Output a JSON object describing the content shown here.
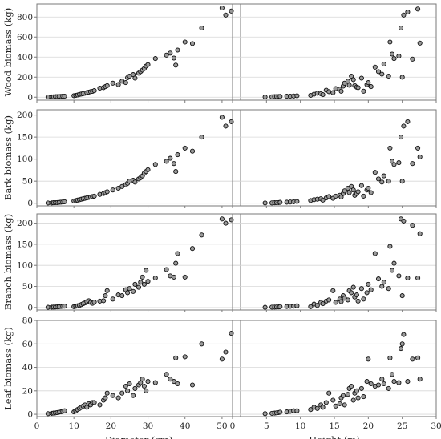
{
  "chart_data": {
    "type": "scatter",
    "grid": true,
    "layout": "4x2 scatter matrix",
    "marker": {
      "shape": "circle",
      "fill": "#9a9a9a",
      "stroke": "#111111"
    },
    "colors": {
      "frame": "#7a7a7a",
      "grid": "#d8d8d8",
      "text": "#222222"
    },
    "columns": [
      {
        "xlabel": "Diameter (cm)",
        "xlim": [
          0,
          55
        ],
        "xticks": [
          0,
          10,
          20,
          30,
          40,
          50
        ],
        "x": [
          3,
          4,
          4.5,
          5,
          5.5,
          6,
          6.5,
          7,
          7.5,
          10,
          10.5,
          11,
          11.5,
          12,
          12.5,
          13,
          13.5,
          14,
          14.5,
          15,
          15.5,
          17,
          18,
          18.5,
          19,
          20.5,
          22,
          23,
          24,
          24.5,
          25,
          26,
          26.5,
          27.5,
          28,
          28.5,
          29,
          29.5,
          30,
          32,
          35,
          36,
          37,
          37.5,
          38,
          40,
          42,
          44.5,
          50,
          51,
          52.5
        ]
      },
      {
        "xlabel": "Height (m)",
        "xlim": [
          0,
          30
        ],
        "xticks": [
          0,
          5,
          10,
          15,
          20,
          25,
          30
        ],
        "x": [
          4.8,
          5.8,
          6.2,
          6.5,
          6.8,
          7,
          8,
          8.5,
          9,
          9.5,
          11.5,
          12,
          12.5,
          13,
          13.3,
          13.8,
          14.2,
          14.8,
          15.2,
          15.8,
          16,
          16.3,
          16.5,
          17,
          17.2,
          17.5,
          17.8,
          18,
          18.3,
          18.5,
          19,
          19.3,
          19.8,
          20,
          20.4,
          21,
          21.5,
          22,
          22.3,
          23,
          23.2,
          23.5,
          23.8,
          24.5,
          24.8,
          25,
          25.2,
          25.8,
          26.5,
          27.3,
          27.6
        ]
      }
    ],
    "rows": [
      {
        "ylabel": "Wood biomass (kg)",
        "ylim": [
          -30,
          930
        ],
        "yticks": [
          0,
          200,
          400,
          600,
          800
        ],
        "by_diameter": [
          2,
          3,
          4,
          5,
          6,
          7,
          8,
          9,
          10,
          15,
          18,
          22,
          28,
          32,
          36,
          40,
          45,
          50,
          55,
          58,
          65,
          90,
          95,
          105,
          115,
          140,
          125,
          160,
          145,
          195,
          210,
          225,
          190,
          240,
          255,
          270,
          285,
          310,
          325,
          385,
          420,
          440,
          390,
          320,
          470,
          550,
          535,
          690,
          890,
          820,
          860
        ],
        "by_height": [
          2,
          4,
          6,
          6,
          7,
          8,
          9,
          10,
          12,
          14,
          18,
          30,
          40,
          35,
          25,
          70,
          55,
          45,
          85,
          80,
          60,
          110,
          140,
          160,
          120,
          210,
          175,
          115,
          100,
          95,
          190,
          60,
          125,
          145,
          105,
          300,
          255,
          230,
          330,
          210,
          550,
          430,
          385,
          410,
          690,
          200,
          820,
          850,
          380,
          880,
          540
        ]
      },
      {
        "ylabel": "Bark biomass (kg)",
        "ylim": [
          -6,
          212
        ],
        "yticks": [
          0,
          50,
          100,
          150,
          200
        ],
        "by_diameter": [
          0.5,
          0.8,
          1,
          1.2,
          1.5,
          2,
          2.3,
          2.8,
          3.2,
          5,
          6,
          7,
          8,
          9,
          10,
          11,
          12,
          13,
          14,
          15,
          16,
          20,
          22,
          24,
          26,
          30,
          34,
          38,
          42,
          45,
          50,
          52,
          48,
          55,
          58,
          62,
          68,
          72,
          76,
          88,
          95,
          102,
          90,
          72,
          110,
          125,
          118,
          150,
          195,
          175,
          185
        ],
        "by_height": [
          0.5,
          0.8,
          1,
          1.2,
          1.5,
          2,
          2.3,
          2.8,
          3.2,
          4,
          6,
          8,
          9,
          10,
          7,
          12,
          15,
          11,
          16,
          18,
          14,
          22,
          28,
          34,
          24,
          38,
          30,
          18,
          22,
          26,
          40,
          16,
          30,
          34,
          24,
          70,
          55,
          48,
          62,
          50,
          125,
          95,
          88,
          92,
          150,
          50,
          175,
          185,
          90,
          125,
          105
        ]
      },
      {
        "ylabel": "Branch biomass (kg)",
        "ylim": [
          -6,
          222
        ],
        "yticks": [
          0,
          50,
          100,
          150,
          200
        ],
        "by_diameter": [
          0.5,
          0.8,
          1,
          1.2,
          1.5,
          2,
          2.3,
          2.8,
          3.2,
          2,
          3,
          4,
          5,
          7,
          9,
          11,
          14,
          16,
          12,
          10,
          13,
          15,
          16,
          28,
          40,
          20,
          30,
          28,
          42,
          35,
          45,
          38,
          55,
          48,
          60,
          72,
          55,
          88,
          62,
          70,
          90,
          75,
          72,
          105,
          128,
          72,
          140,
          172,
          210,
          200,
          208
        ],
        "by_height": [
          0.5,
          0.8,
          1,
          1.2,
          1.5,
          2,
          2.3,
          2.8,
          3.2,
          4,
          2,
          8,
          5,
          12,
          9,
          15,
          18,
          40,
          12,
          20,
          14,
          28,
          22,
          18,
          40,
          35,
          48,
          25,
          30,
          15,
          45,
          20,
          35,
          55,
          42,
          128,
          68,
          50,
          60,
          45,
          145,
          88,
          105,
          75,
          210,
          28,
          205,
          70,
          195,
          70,
          175
        ]
      },
      {
        "ylabel": "Leaf biomass (kg)",
        "ylim": [
          -2,
          80
        ],
        "yticks": [
          0,
          20,
          40,
          60,
          80
        ],
        "by_diameter": [
          0.5,
          0.8,
          1,
          1.2,
          1.5,
          1.8,
          2,
          2.5,
          3,
          2,
          3,
          4,
          5,
          6,
          7,
          8,
          6,
          9,
          8,
          10,
          10,
          8,
          12,
          14,
          18,
          16,
          14,
          18,
          24,
          20,
          26,
          16,
          22,
          25,
          27,
          30,
          24,
          20,
          28,
          27,
          34,
          30,
          28,
          48,
          26,
          49,
          25,
          60,
          47,
          53,
          69
        ],
        "by_height": [
          0.5,
          0.8,
          1,
          1.2,
          1.5,
          1.8,
          2,
          2.5,
          3,
          3,
          4,
          6,
          5,
          8,
          6,
          10,
          18,
          12,
          7,
          9,
          14,
          16,
          8,
          17,
          22,
          24,
          12,
          18,
          20,
          14,
          22,
          15,
          28,
          47,
          26,
          24,
          25,
          30,
          26,
          22,
          48,
          34,
          28,
          27,
          56,
          60,
          68,
          28,
          47,
          48,
          30
        ]
      }
    ]
  }
}
